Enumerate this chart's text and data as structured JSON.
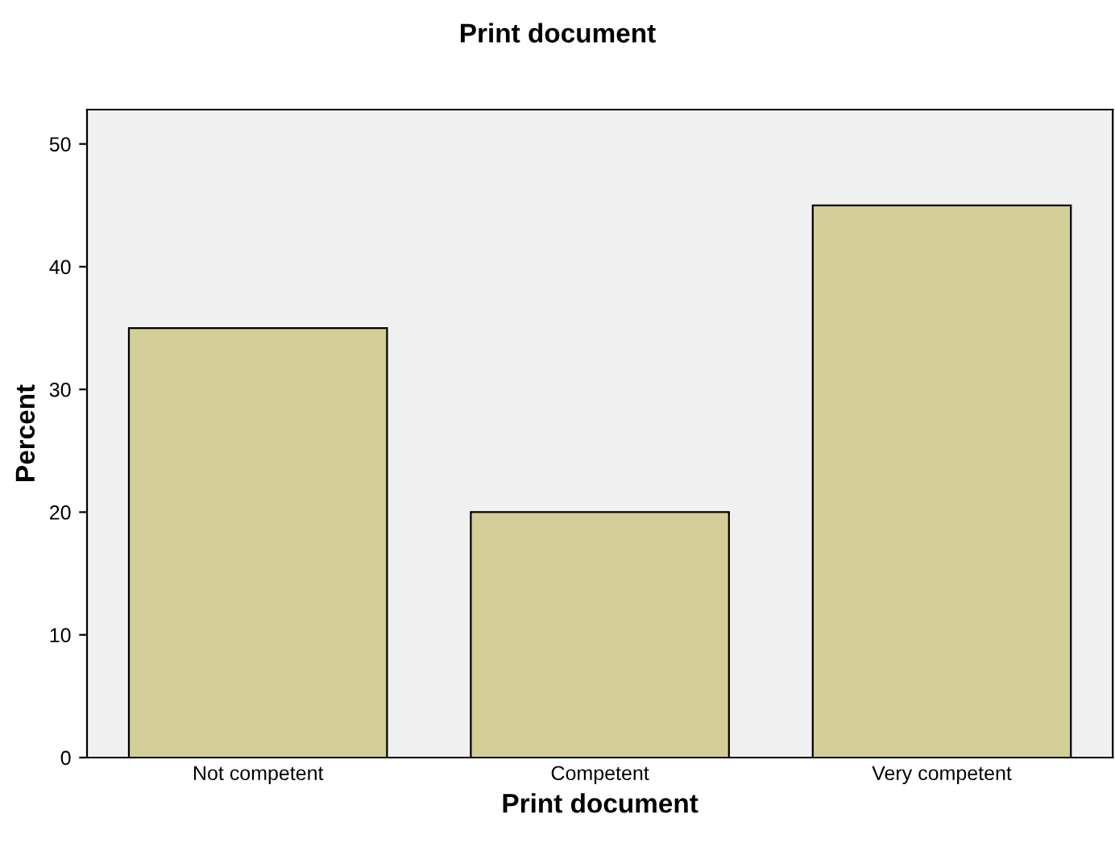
{
  "chart_data": {
    "type": "bar",
    "title": "Print document",
    "xlabel": "Print document",
    "ylabel": "Percent",
    "categories": [
      "Not competent",
      "Competent",
      "Very competent"
    ],
    "values": [
      35,
      20,
      45
    ],
    "color": "#d3ce98",
    "ylim": [
      0,
      52.8
    ],
    "yticks": [
      0,
      10,
      20,
      30,
      40,
      50
    ],
    "grid": false
  }
}
